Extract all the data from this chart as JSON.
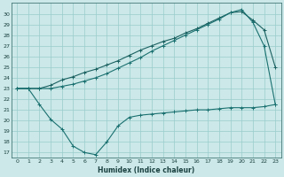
{
  "title": "",
  "xlabel": "Humidex (Indice chaleur)",
  "ylabel": "",
  "bg_color": "#cce8e8",
  "grid_color": "#99cccc",
  "line_color1": "#1a6060",
  "line_color2": "#1a7070",
  "line_color3": "#1a7070",
  "xlim": [
    -0.5,
    23.5
  ],
  "ylim": [
    16.5,
    31.0
  ],
  "xticks": [
    0,
    1,
    2,
    3,
    4,
    5,
    6,
    7,
    8,
    9,
    10,
    11,
    12,
    13,
    14,
    15,
    16,
    17,
    18,
    19,
    20,
    21,
    22,
    23
  ],
  "yticks": [
    17,
    18,
    19,
    20,
    21,
    22,
    23,
    24,
    25,
    26,
    27,
    28,
    29,
    30
  ],
  "series1_x": [
    0,
    1,
    2,
    3,
    4,
    5,
    6,
    7,
    8,
    9,
    10,
    11,
    12,
    13,
    14,
    15,
    16,
    17,
    18,
    19,
    20,
    21,
    22,
    23
  ],
  "series1_y": [
    23.0,
    23.0,
    23.0,
    23.3,
    23.8,
    24.1,
    24.5,
    24.8,
    25.2,
    25.6,
    26.1,
    26.6,
    27.0,
    27.4,
    27.7,
    28.2,
    28.6,
    29.1,
    29.6,
    30.1,
    30.2,
    29.4,
    28.5,
    25.0
  ],
  "series2_x": [
    0,
    1,
    2,
    3,
    4,
    5,
    6,
    7,
    8,
    9,
    10,
    11,
    12,
    13,
    14,
    15,
    16,
    17,
    18,
    19,
    20,
    21,
    22,
    23
  ],
  "series2_y": [
    23.0,
    23.0,
    23.0,
    23.0,
    23.2,
    23.4,
    23.7,
    24.0,
    24.4,
    24.9,
    25.4,
    25.9,
    26.5,
    27.0,
    27.5,
    28.0,
    28.5,
    29.0,
    29.5,
    30.1,
    30.4,
    29.2,
    27.0,
    21.5
  ],
  "series3_x": [
    0,
    1,
    2,
    3,
    4,
    5,
    6,
    7,
    8,
    9,
    10,
    11,
    12,
    13,
    14,
    15,
    16,
    17,
    18,
    19,
    20,
    21,
    22,
    23
  ],
  "series3_y": [
    23.0,
    23.0,
    21.5,
    20.1,
    19.2,
    17.6,
    17.0,
    16.8,
    18.0,
    19.5,
    20.3,
    20.5,
    20.6,
    20.7,
    20.8,
    20.9,
    21.0,
    21.0,
    21.1,
    21.2,
    21.2,
    21.2,
    21.3,
    21.5
  ]
}
